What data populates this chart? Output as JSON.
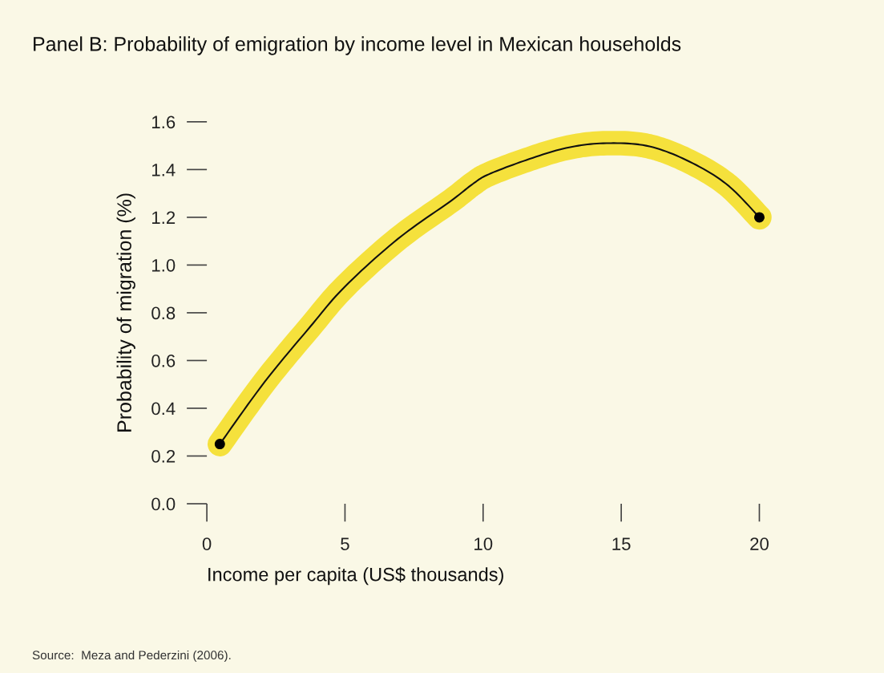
{
  "chart_data": {
    "type": "line",
    "title": "Panel B: Probability of emigration by income level in Mexican households",
    "xlabel": "Income per capita (US$ thousands)",
    "ylabel": "Probability of migration (%)",
    "annotations": [
      "Source:  Meza and Pederzini (2006)."
    ],
    "series": [
      {
        "color": "#f5e13c",
        "x": [
          0.47,
          2.09,
          3.73,
          5.0,
          6.92,
          8.85,
          9.63,
          10.2,
          11.57,
          13.0,
          14.35,
          15.9,
          17.35,
          18.8,
          20.0
        ],
        "values": [
          0.25,
          0.51,
          0.74,
          0.91,
          1.11,
          1.27,
          1.34,
          1.38,
          1.44,
          1.49,
          1.51,
          1.5,
          1.44,
          1.34,
          1.2
        ]
      },
      {
        "type": "scatter",
        "color": "#000000",
        "x": [
          0.47,
          20.0
        ],
        "values": [
          0.25,
          1.2
        ]
      }
    ],
    "xlim": [
      0,
      20
    ],
    "xticks": [
      0,
      5,
      10,
      15,
      20
    ],
    "ylim": [
      0,
      1.6
    ],
    "yticks": [
      {
        "value": 0,
        "label": "0.0"
      },
      {
        "value": 0.2,
        "label": "0.2"
      },
      {
        "value": 0.4,
        "label": "0.4"
      },
      {
        "value": 0.6,
        "label": "0.6"
      },
      {
        "value": 0.8,
        "label": "0.8"
      },
      {
        "value": 1.0,
        "label": "1.0"
      },
      {
        "value": 1.2,
        "label": "1.2"
      },
      {
        "value": 1.4,
        "label": "1.4"
      },
      {
        "value": 1.6,
        "label": "1.6"
      }
    ],
    "grid": false,
    "legend": false,
    "line_style": "solid"
  }
}
